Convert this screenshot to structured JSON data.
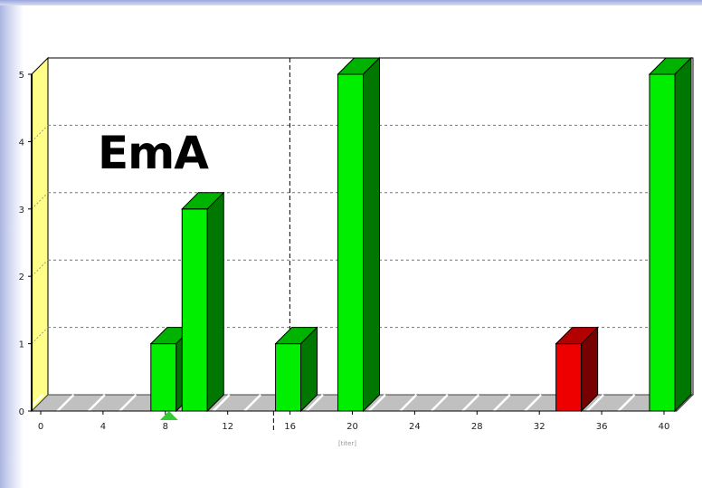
{
  "overlay_title": "EmA",
  "colors": {
    "bar_green": "#00ee00",
    "bar_red": "#ee0000",
    "wall_yellow": "#ffff88",
    "floor_gray": "#c0c0c0",
    "marker_green": "#33cc33"
  },
  "chart_data": {
    "type": "bar",
    "title": "",
    "xlabel": "[titer]",
    "ylabel": "",
    "xlim": [
      0,
      40
    ],
    "ylim": [
      0,
      5
    ],
    "x_ticks": [
      0,
      4,
      8,
      12,
      16,
      20,
      24,
      28,
      32,
      36,
      40
    ],
    "y_ticks": [
      0,
      1,
      2,
      3,
      4,
      5
    ],
    "y_tick_labels": [
      "0",
      "1",
      "2",
      "3",
      "4",
      "5"
    ],
    "grid": true,
    "style": "3d",
    "bars": [
      {
        "x": 8,
        "value": 1,
        "color": "green"
      },
      {
        "x": 10,
        "value": 3,
        "color": "green"
      },
      {
        "x": 16,
        "value": 1,
        "color": "green"
      },
      {
        "x": 20,
        "value": 5,
        "color": "green"
      },
      {
        "x": 34,
        "value": 1,
        "color": "red"
      },
      {
        "x": 40,
        "value": 5,
        "color": "green"
      }
    ],
    "reference_line_x": 15,
    "marker_x": 8
  }
}
